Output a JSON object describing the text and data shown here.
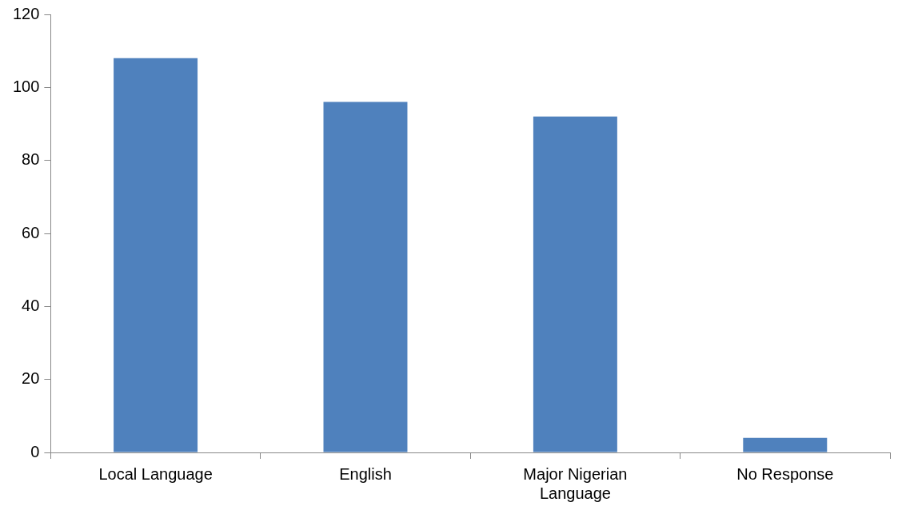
{
  "chart_data": {
    "type": "bar",
    "categories": [
      "Local Language",
      "English",
      "Major Nigerian Language",
      "No Response"
    ],
    "values": [
      108,
      96,
      92,
      4
    ],
    "color": "#4f81bd",
    "ylim": [
      0,
      120
    ],
    "yticks": [
      0,
      20,
      40,
      60,
      80,
      100,
      120
    ],
    "grid": false,
    "legend": false
  }
}
